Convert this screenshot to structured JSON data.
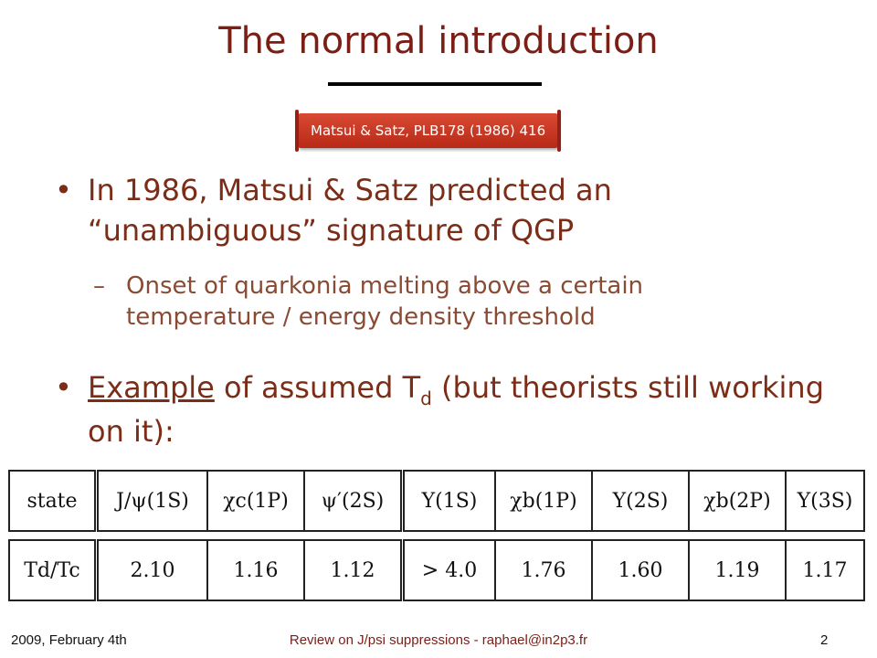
{
  "slide": {
    "title": "The normal introduction",
    "citation": "Matsui & Satz, PLB178 (1986) 416",
    "bullet1": "In 1986, Matsui & Satz predicted an “unambiguous” signature of QGP",
    "sub1": "Onset of quarkonia melting above a certain temperature / energy density threshold",
    "bullet2_underlined": "Example",
    "bullet2_pre": " of assumed T",
    "bullet2_sub": "d",
    "bullet2_post": " (but theorists still working on it):",
    "bullet_symbol": "•",
    "dash_symbol": "–"
  },
  "table": {
    "row1_label": "state",
    "states": [
      "J/ψ(1S)",
      "χc(1P)",
      "ψ′(2S)",
      "Υ(1S)",
      "χb(1P)",
      "Υ(2S)",
      "χb(2P)",
      "Υ(3S)"
    ],
    "row2_label": "Td/Tc",
    "values": [
      "2.10",
      "1.16",
      "1.12",
      "> 4.0",
      "1.76",
      "1.60",
      "1.19",
      "1.17"
    ]
  },
  "footer": {
    "date": "2009, February 4th",
    "center": "Review on J/psi suppressions - raphael@in2p3.fr",
    "page": "2"
  }
}
